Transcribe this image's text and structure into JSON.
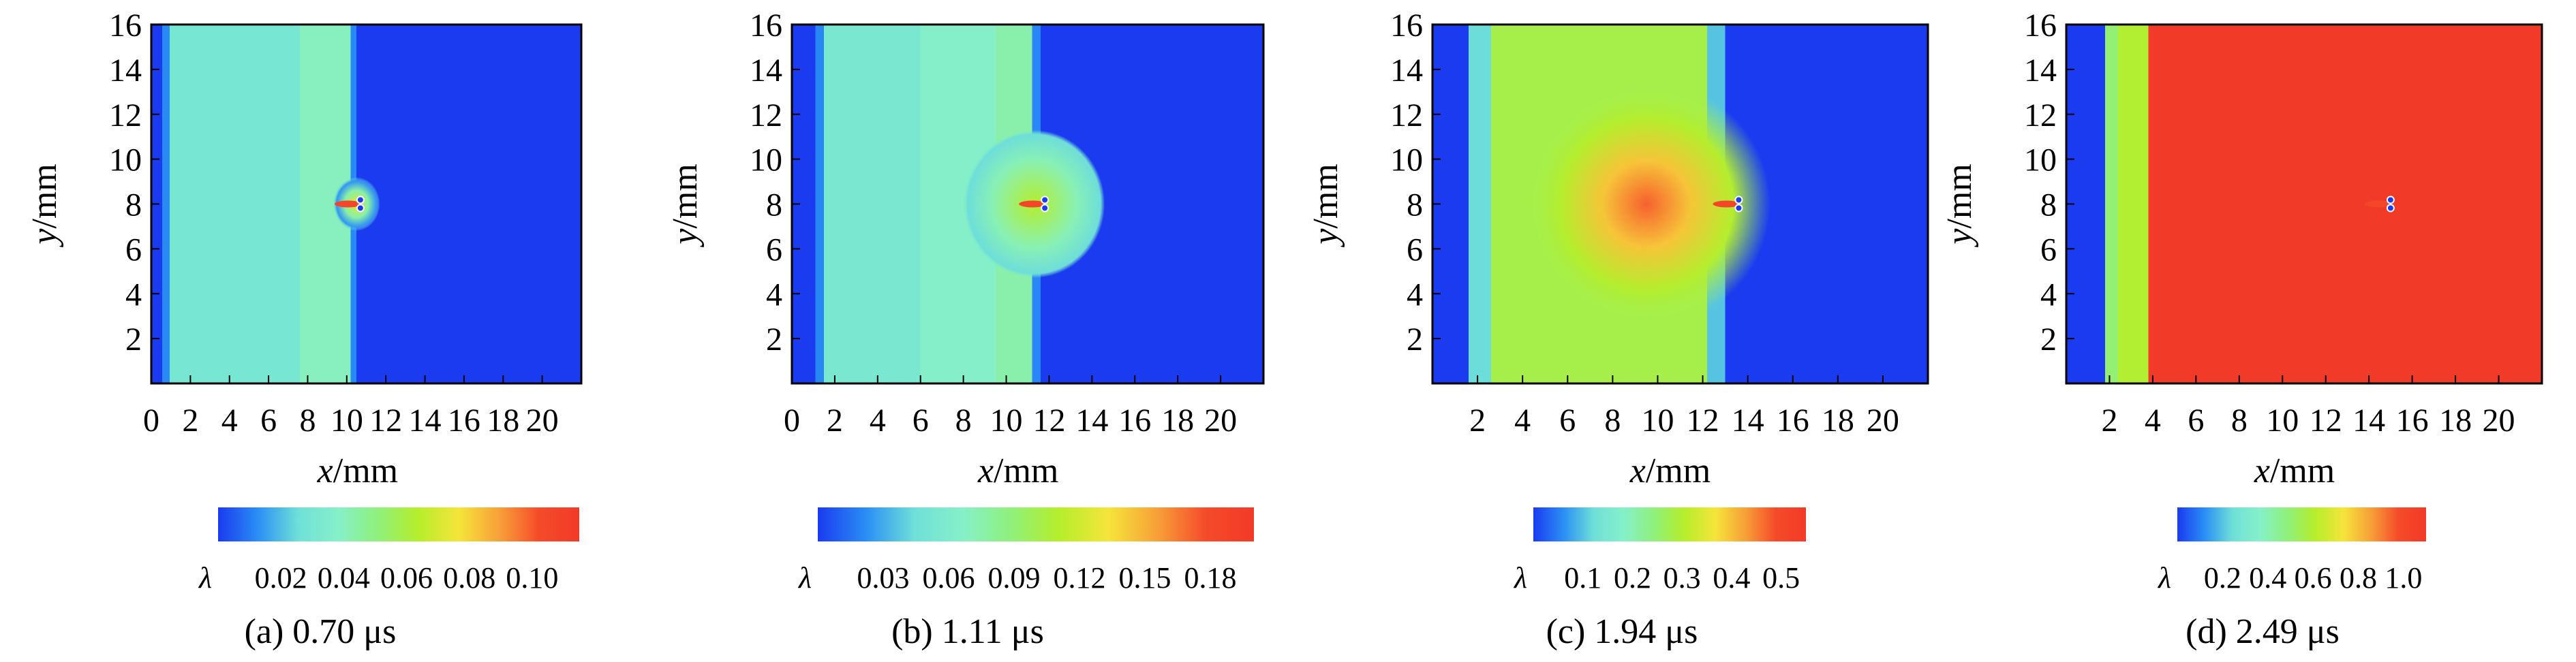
{
  "chart_data": [
    {
      "type": "heatmap",
      "caption": "(a) 0.70 μs",
      "xlabel_var": "x",
      "xlabel_unit": "/mm",
      "ylabel_var": "y",
      "ylabel_unit": "/mm",
      "xlim": [
        0,
        22
      ],
      "ylim": [
        0,
        16
      ],
      "xticks": [
        "0",
        "2",
        "4",
        "6",
        "8",
        "10",
        "12",
        "14",
        "16",
        "18",
        "20"
      ],
      "yticks": [
        "2",
        "4",
        "6",
        "8",
        "10",
        "12",
        "14",
        "16"
      ],
      "colorbar_symbol": "λ",
      "colorbar_ticks": [
        "0.02",
        "0.04",
        "0.06",
        "0.08",
        "0.10"
      ],
      "colorbar_range": [
        0,
        0.115
      ],
      "fields": {
        "bands": [
          {
            "x": [
              0,
              0.55
            ],
            "value": 0.0
          },
          {
            "x": [
              0.55,
              0.95
            ],
            "value": 0.012
          },
          {
            "x": [
              0.95,
              7.6
            ],
            "value": 0.03
          },
          {
            "x": [
              7.6,
              10.2
            ],
            "value": 0.04
          },
          {
            "x": [
              10.2,
              10.5
            ],
            "value": 0.012
          },
          {
            "x": [
              10.5,
              22
            ],
            "value": 0.0
          }
        ],
        "blast_center": [
          10.5,
          8.0
        ],
        "blast_radius": 1.2,
        "charge_holes": [
          [
            10.7,
            8.0
          ]
        ]
      }
    },
    {
      "type": "heatmap",
      "caption": "(b) 1.11 μs",
      "xlabel_var": "x",
      "xlabel_unit": "/mm",
      "ylabel_var": "y",
      "ylabel_unit": "/mm",
      "xlim": [
        0,
        22
      ],
      "ylim": [
        0,
        16
      ],
      "xticks": [
        "0",
        "2",
        "4",
        "6",
        "8",
        "10",
        "12",
        "14",
        "16",
        "18",
        "20"
      ],
      "yticks": [
        "2",
        "4",
        "6",
        "8",
        "10",
        "12",
        "14",
        "16"
      ],
      "colorbar_symbol": "λ",
      "colorbar_ticks": [
        "0.03",
        "0.06",
        "0.09",
        "0.12",
        "0.15",
        "0.18"
      ],
      "colorbar_range": [
        0,
        0.2
      ],
      "fields": {
        "bands": [
          {
            "x": [
              0,
              1.1
            ],
            "value": 0.0
          },
          {
            "x": [
              1.1,
              1.5
            ],
            "value": 0.02
          },
          {
            "x": [
              1.5,
              6.0
            ],
            "value": 0.055
          },
          {
            "x": [
              6.0,
              9.5
            ],
            "value": 0.065
          },
          {
            "x": [
              9.5,
              11.2
            ],
            "value": 0.075
          },
          {
            "x": [
              11.2,
              11.6
            ],
            "value": 0.02
          },
          {
            "x": [
              11.6,
              22
            ],
            "value": 0.0
          }
        ],
        "blast_center": [
          11.3,
          8.0
        ],
        "blast_radius": 3.3,
        "charge_holes": [
          [
            11.8,
            8.0
          ]
        ]
      }
    },
    {
      "type": "heatmap",
      "caption": "(c) 1.94 μs",
      "xlabel_var": "x",
      "xlabel_unit": "/mm",
      "ylabel_var": "y",
      "ylabel_unit": "/mm",
      "xlim": [
        0,
        22
      ],
      "ylim": [
        0,
        16
      ],
      "xticks": [
        "2",
        "4",
        "6",
        "8",
        "10",
        "12",
        "14",
        "16",
        "18",
        "20"
      ],
      "yticks": [
        "2",
        "4",
        "6",
        "8",
        "10",
        "12",
        "14",
        "16"
      ],
      "colorbar_symbol": "λ",
      "colorbar_ticks": [
        "0.1",
        "0.2",
        "0.3",
        "0.4",
        "0.5"
      ],
      "colorbar_range": [
        0,
        0.55
      ],
      "fields": {
        "bands": [
          {
            "x": [
              0,
              1.6
            ],
            "value": 0.0
          },
          {
            "x": [
              1.6,
              2.6
            ],
            "value": 0.12
          },
          {
            "x": [
              2.6,
              12.2
            ],
            "value": 0.28
          },
          {
            "x": [
              12.2,
              13.0
            ],
            "value": 0.1
          },
          {
            "x": [
              13.0,
              22
            ],
            "value": 0.0
          }
        ],
        "blast_center": [
          9.5,
          8.0
        ],
        "blast_radius": 5.5,
        "charge_holes": [
          [
            13.6,
            8.0
          ]
        ]
      }
    },
    {
      "type": "heatmap",
      "caption": "(d) 2.49 μs",
      "xlabel_var": "x",
      "xlabel_unit": "/mm",
      "ylabel_var": "y",
      "ylabel_unit": "/mm",
      "xlim": [
        0,
        22
      ],
      "ylim": [
        0,
        16
      ],
      "xticks": [
        "2",
        "4",
        "6",
        "8",
        "10",
        "12",
        "14",
        "16",
        "18",
        "20"
      ],
      "yticks": [
        "2",
        "4",
        "6",
        "8",
        "10",
        "12",
        "14",
        "16"
      ],
      "colorbar_symbol": "λ",
      "colorbar_ticks": [
        "0.2",
        "0.4",
        "0.6",
        "0.8",
        "1.0"
      ],
      "colorbar_range": [
        0,
        1.1
      ],
      "fields": {
        "bands": [
          {
            "x": [
              0,
              1.8
            ],
            "value": 0.0
          },
          {
            "x": [
              1.8,
              2.4
            ],
            "value": 0.5
          },
          {
            "x": [
              2.4,
              3.8
            ],
            "value": 0.6
          },
          {
            "x": [
              3.8,
              16.0
            ],
            "value": 1.1
          },
          {
            "x": [
              16.0,
              16.6
            ],
            "value": 0.5
          },
          {
            "x": [
              16.6,
              22
            ],
            "value": 0.0
          }
        ],
        "blast_center": [
          15.0,
          8.0
        ],
        "blast_radius": 11.0,
        "charge_holes": [
          [
            15.0,
            8.0
          ]
        ]
      }
    }
  ],
  "colormap": [
    "#1a3bf0",
    "#2b8ff5",
    "#6fe0d8",
    "#86f0c8",
    "#8ff07a",
    "#b6ee2a",
    "#f5e53a",
    "#f7a038",
    "#f54b2a",
    "#f23a28"
  ]
}
